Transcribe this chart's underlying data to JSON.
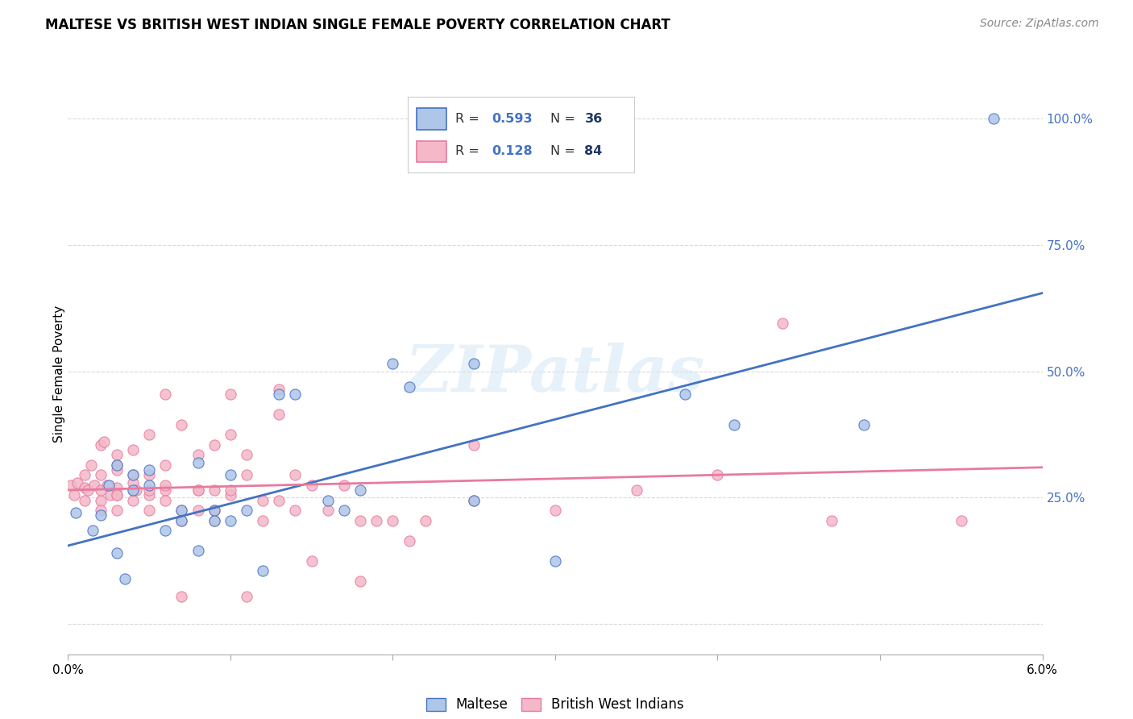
{
  "title": "MALTESE VS BRITISH WEST INDIAN SINGLE FEMALE POVERTY CORRELATION CHART",
  "source": "Source: ZipAtlas.com",
  "ylabel": "Single Female Poverty",
  "xmin": 0.0,
  "xmax": 0.06,
  "ymin": 0.0,
  "ymax": 1.05,
  "maltese_R": 0.593,
  "maltese_N": 36,
  "bwi_R": 0.128,
  "bwi_N": 84,
  "maltese_color": "#aec6e8",
  "bwi_color": "#f4b8c8",
  "maltese_line_color": "#4472c4",
  "bwi_line_color": "#e87a9f",
  "legend_val_color": "#4472c4",
  "legend_N_color": "#1f3864",
  "watermark": "ZIPatlas",
  "background_color": "#ffffff",
  "grid_color": "#d9d9d9",
  "title_fontsize": 12,
  "source_fontsize": 10,
  "maltese_scatter": [
    [
      0.0005,
      0.22
    ],
    [
      0.0015,
      0.185
    ],
    [
      0.002,
      0.215
    ],
    [
      0.0025,
      0.275
    ],
    [
      0.003,
      0.14
    ],
    [
      0.003,
      0.315
    ],
    [
      0.0035,
      0.09
    ],
    [
      0.004,
      0.265
    ],
    [
      0.004,
      0.295
    ],
    [
      0.005,
      0.305
    ],
    [
      0.005,
      0.275
    ],
    [
      0.006,
      0.185
    ],
    [
      0.007,
      0.225
    ],
    [
      0.007,
      0.205
    ],
    [
      0.008,
      0.145
    ],
    [
      0.008,
      0.32
    ],
    [
      0.009,
      0.225
    ],
    [
      0.009,
      0.205
    ],
    [
      0.01,
      0.205
    ],
    [
      0.01,
      0.295
    ],
    [
      0.011,
      0.225
    ],
    [
      0.012,
      0.105
    ],
    [
      0.013,
      0.455
    ],
    [
      0.014,
      0.455
    ],
    [
      0.016,
      0.245
    ],
    [
      0.017,
      0.225
    ],
    [
      0.018,
      0.265
    ],
    [
      0.02,
      0.515
    ],
    [
      0.021,
      0.47
    ],
    [
      0.025,
      0.515
    ],
    [
      0.025,
      0.245
    ],
    [
      0.03,
      0.125
    ],
    [
      0.038,
      0.455
    ],
    [
      0.041,
      0.395
    ],
    [
      0.049,
      0.395
    ],
    [
      0.057,
      1.0
    ]
  ],
  "bwi_scatter": [
    [
      0.0002,
      0.275
    ],
    [
      0.0004,
      0.255
    ],
    [
      0.0006,
      0.28
    ],
    [
      0.001,
      0.27
    ],
    [
      0.001,
      0.245
    ],
    [
      0.001,
      0.295
    ],
    [
      0.0012,
      0.265
    ],
    [
      0.0014,
      0.315
    ],
    [
      0.0016,
      0.275
    ],
    [
      0.002,
      0.245
    ],
    [
      0.002,
      0.265
    ],
    [
      0.002,
      0.225
    ],
    [
      0.002,
      0.295
    ],
    [
      0.002,
      0.355
    ],
    [
      0.0022,
      0.36
    ],
    [
      0.0024,
      0.275
    ],
    [
      0.0026,
      0.255
    ],
    [
      0.003,
      0.27
    ],
    [
      0.003,
      0.255
    ],
    [
      0.003,
      0.255
    ],
    [
      0.003,
      0.335
    ],
    [
      0.003,
      0.315
    ],
    [
      0.003,
      0.305
    ],
    [
      0.003,
      0.225
    ],
    [
      0.004,
      0.265
    ],
    [
      0.004,
      0.295
    ],
    [
      0.004,
      0.245
    ],
    [
      0.004,
      0.28
    ],
    [
      0.004,
      0.345
    ],
    [
      0.0042,
      0.265
    ],
    [
      0.005,
      0.255
    ],
    [
      0.005,
      0.225
    ],
    [
      0.005,
      0.295
    ],
    [
      0.005,
      0.375
    ],
    [
      0.005,
      0.265
    ],
    [
      0.006,
      0.265
    ],
    [
      0.006,
      0.275
    ],
    [
      0.006,
      0.315
    ],
    [
      0.006,
      0.455
    ],
    [
      0.006,
      0.245
    ],
    [
      0.007,
      0.205
    ],
    [
      0.007,
      0.225
    ],
    [
      0.007,
      0.395
    ],
    [
      0.007,
      0.055
    ],
    [
      0.008,
      0.265
    ],
    [
      0.008,
      0.225
    ],
    [
      0.008,
      0.335
    ],
    [
      0.008,
      0.265
    ],
    [
      0.009,
      0.265
    ],
    [
      0.009,
      0.225
    ],
    [
      0.009,
      0.205
    ],
    [
      0.009,
      0.355
    ],
    [
      0.01,
      0.255
    ],
    [
      0.01,
      0.455
    ],
    [
      0.01,
      0.265
    ],
    [
      0.01,
      0.375
    ],
    [
      0.011,
      0.295
    ],
    [
      0.011,
      0.335
    ],
    [
      0.011,
      0.055
    ],
    [
      0.012,
      0.245
    ],
    [
      0.012,
      0.205
    ],
    [
      0.013,
      0.465
    ],
    [
      0.013,
      0.245
    ],
    [
      0.013,
      0.415
    ],
    [
      0.014,
      0.225
    ],
    [
      0.014,
      0.295
    ],
    [
      0.015,
      0.275
    ],
    [
      0.015,
      0.125
    ],
    [
      0.016,
      0.225
    ],
    [
      0.017,
      0.275
    ],
    [
      0.018,
      0.205
    ],
    [
      0.018,
      0.085
    ],
    [
      0.019,
      0.205
    ],
    [
      0.02,
      0.205
    ],
    [
      0.021,
      0.165
    ],
    [
      0.022,
      0.205
    ],
    [
      0.025,
      0.355
    ],
    [
      0.025,
      0.245
    ],
    [
      0.03,
      0.225
    ],
    [
      0.035,
      0.265
    ],
    [
      0.04,
      0.295
    ],
    [
      0.044,
      0.595
    ],
    [
      0.047,
      0.205
    ],
    [
      0.055,
      0.205
    ]
  ],
  "maltese_line_y0": 0.155,
  "maltese_line_y1": 0.655,
  "bwi_line_y0": 0.265,
  "bwi_line_y1": 0.31
}
